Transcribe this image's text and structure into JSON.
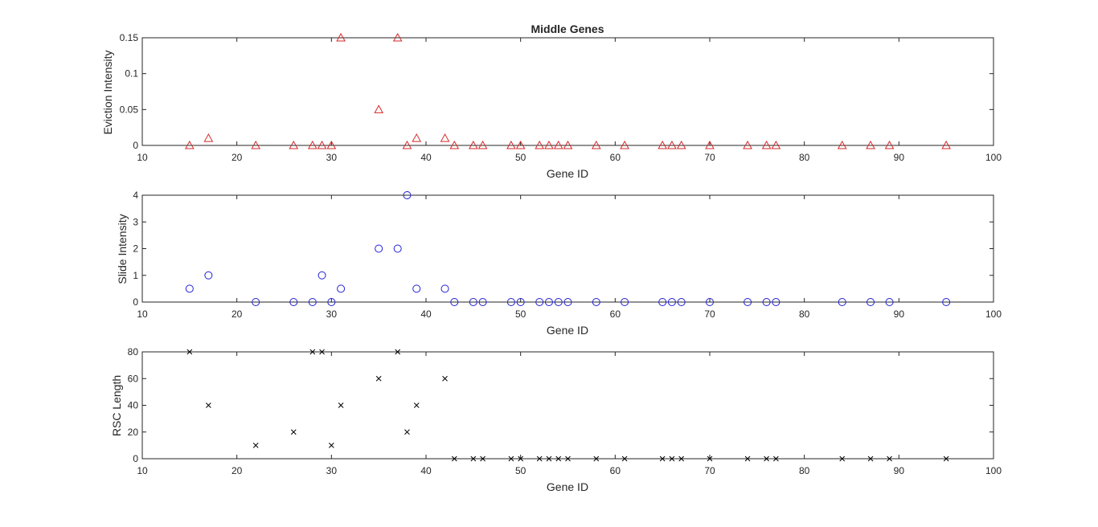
{
  "figure": {
    "background": "#ffffff",
    "axis_color": "#262626"
  },
  "chart_data": [
    {
      "type": "scatter",
      "title": "Middle Genes",
      "xlabel": "Gene ID",
      "ylabel": "Eviction Intensity",
      "xlim": [
        10,
        100
      ],
      "ylim": [
        0,
        0.15
      ],
      "xticks": [
        10,
        20,
        30,
        40,
        50,
        60,
        70,
        80,
        90,
        100
      ],
      "yticks": [
        0,
        0.05,
        0.1,
        0.15
      ],
      "ytick_labels": [
        "0",
        "0.05",
        "0.1",
        "0.15"
      ],
      "marker": "triangle",
      "color": "#d62728",
      "grid": false,
      "box": true,
      "series": [
        {
          "x": [
            15,
            17,
            22,
            26,
            28,
            29,
            30,
            31,
            35,
            37,
            38,
            39,
            42,
            43,
            45,
            46,
            49,
            50,
            52,
            53,
            54,
            55,
            58,
            61,
            65,
            66,
            67,
            70,
            74,
            76,
            77,
            84,
            87,
            89,
            95
          ],
          "y": [
            0,
            0.01,
            0,
            0,
            0,
            0,
            0,
            0.15,
            0.05,
            0.15,
            0,
            0.01,
            0.01,
            0,
            0,
            0,
            0,
            0,
            0,
            0,
            0,
            0,
            0,
            0,
            0,
            0,
            0,
            0,
            0,
            0,
            0,
            0,
            0,
            0,
            0
          ]
        }
      ]
    },
    {
      "type": "scatter",
      "title": "",
      "xlabel": "Gene ID",
      "ylabel": "Slide Intensity",
      "xlim": [
        10,
        100
      ],
      "ylim": [
        0,
        4
      ],
      "xticks": [
        10,
        20,
        30,
        40,
        50,
        60,
        70,
        80,
        90,
        100
      ],
      "yticks": [
        0,
        1,
        2,
        3,
        4
      ],
      "ytick_labels": [
        "0",
        "1",
        "2",
        "3",
        "4"
      ],
      "marker": "circle",
      "color": "#1f1fd6",
      "grid": false,
      "box": true,
      "series": [
        {
          "x": [
            15,
            17,
            22,
            26,
            28,
            29,
            30,
            31,
            35,
            37,
            38,
            39,
            42,
            43,
            45,
            46,
            49,
            50,
            52,
            53,
            54,
            55,
            58,
            61,
            65,
            66,
            67,
            70,
            74,
            76,
            77,
            84,
            87,
            89,
            95
          ],
          "y": [
            0.5,
            1,
            0,
            0,
            0,
            1,
            0,
            0.5,
            2,
            2,
            4,
            0.5,
            0.5,
            0,
            0,
            0,
            0,
            0,
            0,
            0,
            0,
            0,
            0,
            0,
            0,
            0,
            0,
            0,
            0,
            0,
            0,
            0,
            0,
            0,
            0
          ]
        }
      ]
    },
    {
      "type": "scatter",
      "title": "",
      "xlabel": "Gene ID",
      "ylabel": "RSC Length",
      "xlim": [
        10,
        100
      ],
      "ylim": [
        0,
        80
      ],
      "xticks": [
        10,
        20,
        30,
        40,
        50,
        60,
        70,
        80,
        90,
        100
      ],
      "yticks": [
        0,
        20,
        40,
        60,
        80
      ],
      "ytick_labels": [
        "0",
        "20",
        "40",
        "60",
        "80"
      ],
      "marker": "x",
      "color": "#000000",
      "grid": false,
      "box": true,
      "series": [
        {
          "x": [
            15,
            17,
            22,
            26,
            28,
            29,
            30,
            31,
            35,
            37,
            38,
            39,
            42,
            43,
            45,
            46,
            49,
            50,
            52,
            53,
            54,
            55,
            58,
            61,
            65,
            66,
            67,
            70,
            74,
            76,
            77,
            84,
            87,
            89,
            95
          ],
          "y": [
            80,
            40,
            10,
            20,
            80,
            80,
            10,
            40,
            60,
            80,
            20,
            40,
            60,
            0,
            0,
            0,
            0,
            0,
            0,
            0,
            0,
            0,
            0,
            0,
            0,
            0,
            0,
            0,
            0,
            0,
            0,
            0,
            0,
            0,
            0
          ]
        }
      ]
    }
  ]
}
